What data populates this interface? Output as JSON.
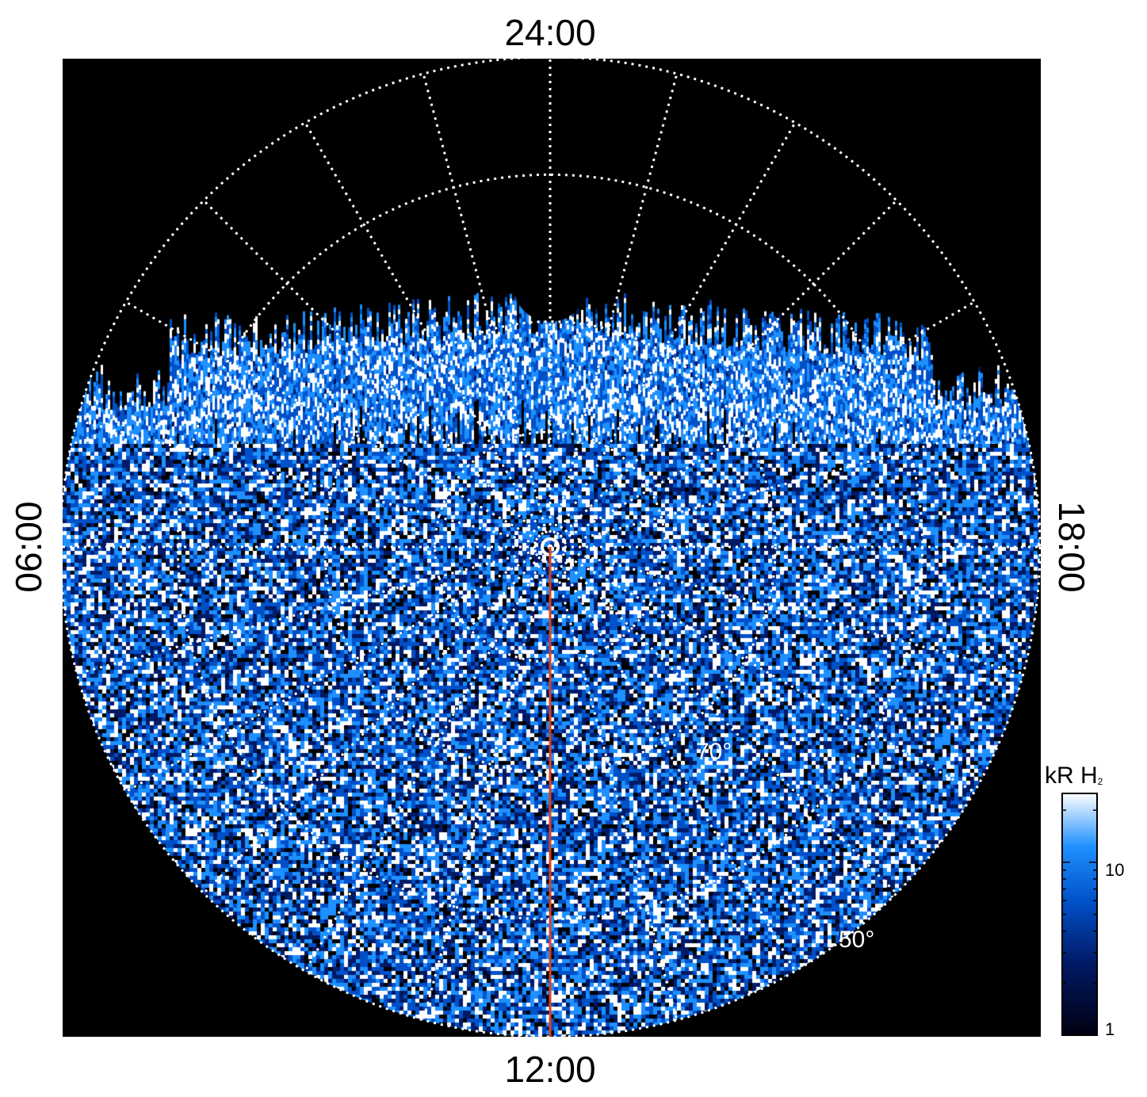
{
  "local_time_labels": {
    "top": "24:00",
    "bottom": "12:00",
    "left": "06:00",
    "right": "18:00"
  },
  "latitude_labels": [
    "70°",
    "50°"
  ],
  "colorbar": {
    "unit_main": "kR H",
    "unit_sub": "2",
    "ticks": [
      "10",
      "1"
    ],
    "scale": "log",
    "range": [
      1,
      25
    ],
    "colors": [
      "#000010",
      "#001a66",
      "#0050c8",
      "#1e90ff",
      "#ffffff"
    ]
  },
  "map": {
    "background": "#000000",
    "grid_color": "#ffffff",
    "meridian_line_color": "#e0401a"
  }
}
